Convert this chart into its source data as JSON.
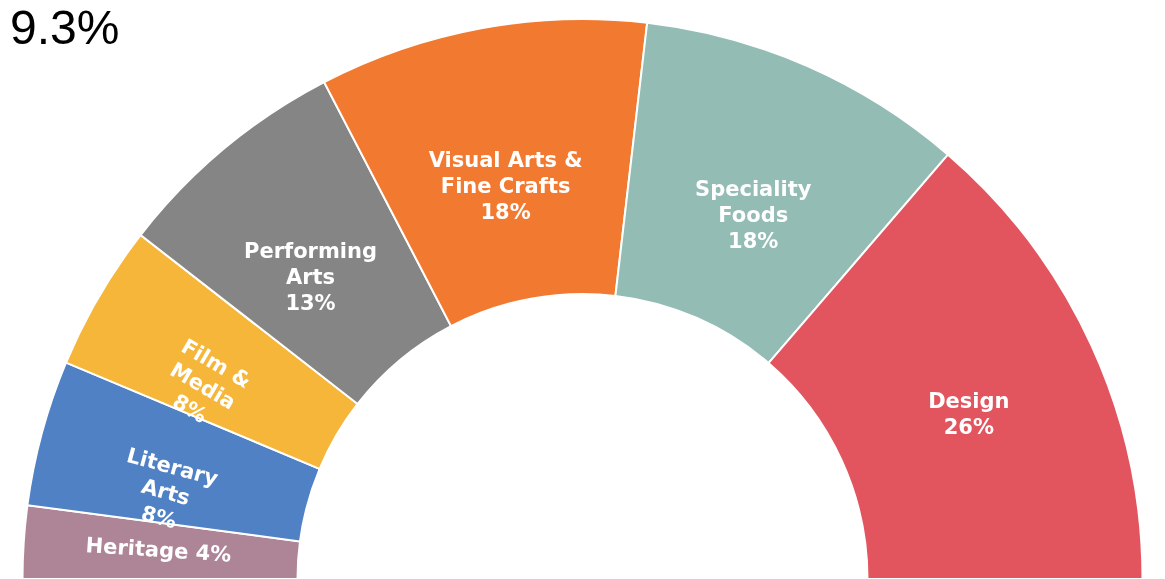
{
  "chart_data": {
    "type": "donut",
    "annotations": [
      "9.3%"
    ],
    "categories": [
      "Heritage",
      "Literary Arts",
      "Film & Media",
      "Performing Arts",
      "Visual Arts & Fine Crafts",
      "Speciality Foods",
      "Design"
    ],
    "values": [
      4,
      8,
      8,
      13,
      18,
      18,
      26
    ],
    "value_labels": [
      "4%",
      "8%",
      "8%",
      "13%",
      "18%",
      "18%",
      "26%"
    ],
    "colors": [
      "#ad8597",
      "#4f81c4",
      "#f5b63a",
      "#858585",
      "#f27a30",
      "#93bcb4",
      "#e2545e"
    ]
  }
}
